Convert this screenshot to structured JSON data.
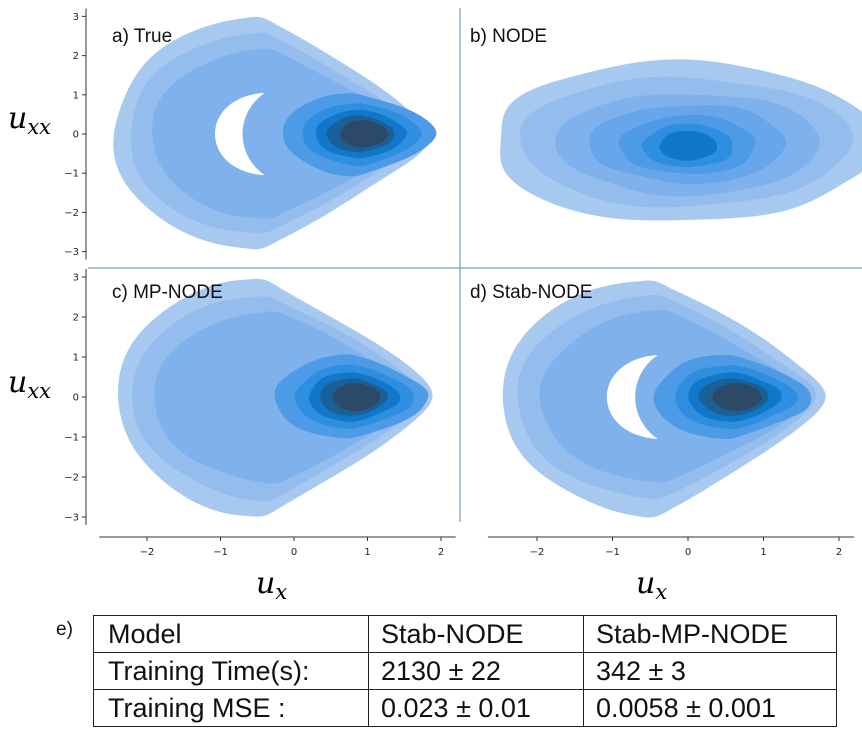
{
  "chart_data": [
    {
      "type": "contour",
      "panel_label": "a) True",
      "xlim": [
        -2.7,
        2.2
      ],
      "ylim": [
        -3.2,
        3.2
      ],
      "x_ticks": [],
      "y_ticks": [
        "3",
        "2",
        "1",
        "0",
        "−1",
        "−2",
        "−3"
      ],
      "ylabel": "u_xx",
      "mode": "crescent",
      "density_center": [
        0.9,
        0.0
      ]
    },
    {
      "type": "contour",
      "panel_label": "b) NODE",
      "xlim": [
        -2.7,
        2.2
      ],
      "ylim": [
        -3.2,
        3.2
      ],
      "x_ticks": [],
      "y_ticks": [],
      "ylabel": "",
      "mode": "blob",
      "density_center": [
        0.0,
        -0.3
      ]
    },
    {
      "type": "contour",
      "panel_label": "c) MP-NODE",
      "xlim": [
        -2.7,
        2.2
      ],
      "ylim": [
        -3.2,
        3.2
      ],
      "x_ticks": [
        "−2",
        "−1",
        "0",
        "1",
        "2"
      ],
      "y_ticks": [
        "3",
        "2",
        "1",
        "0",
        "−1",
        "−2",
        "−3"
      ],
      "xlabel": "u_x",
      "ylabel": "u_xx",
      "mode": "filled",
      "density_center": [
        0.8,
        0.0
      ]
    },
    {
      "type": "contour",
      "panel_label": "d) Stab-NODE",
      "xlim": [
        -2.7,
        2.2
      ],
      "ylim": [
        -3.2,
        3.2
      ],
      "x_ticks": [
        "−2",
        "−1",
        "0",
        "1",
        "2"
      ],
      "y_ticks": [],
      "xlabel": "u_x",
      "ylabel": "",
      "mode": "crescent",
      "density_center": [
        0.6,
        0.0
      ]
    }
  ],
  "axis_labels": {
    "uxx_main": "u",
    "uxx_sub": "xx",
    "ux_main": "u",
    "ux_sub": "x"
  },
  "colors": [
    "#a7c9f0",
    "#94bdee",
    "#7fb2ec",
    "#67a6ea",
    "#4d9be6",
    "#2e8fe0",
    "#1177c8",
    "#1a5f95",
    "#2c4a68"
  ],
  "table": {
    "label": "e)",
    "rows": [
      [
        "Model",
        "Stab-NODE",
        "Stab-MP-NODE"
      ],
      [
        "Training Time(s):",
        "2130 ± 22",
        "342 ± 3"
      ],
      [
        "Training MSE :",
        "0.023 ± 0.01",
        "0.0058 ± 0.001"
      ]
    ]
  }
}
